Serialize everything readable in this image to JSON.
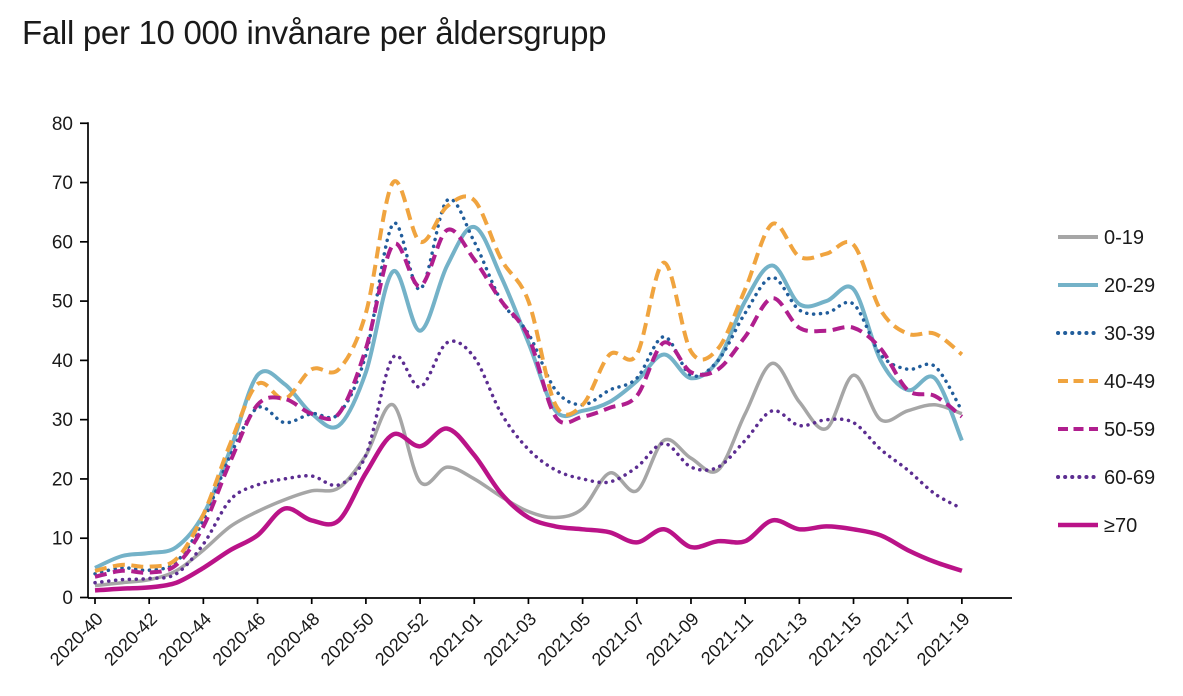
{
  "title": "Fall per 10 000 invånare per åldersgrupp",
  "chart_data": {
    "type": "line",
    "title": "Fall per 10 000 invånare per åldersgrupp",
    "xlabel": "",
    "ylabel": "",
    "ylim": [
      0,
      80
    ],
    "y_ticks": [
      0,
      10,
      20,
      30,
      40,
      50,
      60,
      70,
      80
    ],
    "grid": false,
    "legend_position": "right",
    "x_tick_every": 2,
    "x_weeks": [
      "2020-40",
      "2020-41",
      "2020-42",
      "2020-43",
      "2020-44",
      "2020-45",
      "2020-46",
      "2020-47",
      "2020-48",
      "2020-49",
      "2020-50",
      "2020-51",
      "2020-52",
      "2020-53",
      "2021-01",
      "2021-02",
      "2021-03",
      "2021-04",
      "2021-05",
      "2021-06",
      "2021-07",
      "2021-08",
      "2021-09",
      "2021-10",
      "2021-11",
      "2021-12",
      "2021-13",
      "2021-14",
      "2021-15",
      "2021-16",
      "2021-17",
      "2021-18",
      "2021-19"
    ],
    "series": [
      {
        "name": "0-19",
        "color": "#a6a6a6",
        "style": "solid",
        "width": 3.5,
        "values": [
          2,
          2.5,
          3,
          4.5,
          8,
          12,
          14.5,
          16.5,
          18,
          18.5,
          24,
          32.5,
          19.5,
          22,
          20,
          17,
          14.5,
          13.5,
          15,
          21,
          18,
          26.5,
          23.5,
          21.5,
          31,
          39.5,
          33,
          28.5,
          37.5,
          30,
          31.5,
          32.5,
          31
        ]
      },
      {
        "name": "20-29",
        "color": "#74b2c8",
        "style": "solid",
        "width": 4,
        "values": [
          5,
          7,
          7.5,
          8.5,
          14,
          25,
          37.5,
          36,
          31,
          29,
          38,
          55,
          45,
          56,
          62.5,
          54,
          43,
          31.5,
          31.5,
          33,
          36.5,
          41,
          37,
          40,
          50,
          56,
          49.5,
          50,
          52,
          40,
          35,
          37,
          26.5
        ]
      },
      {
        "name": "30-39",
        "color": "#215d9b",
        "style": "dotted",
        "width": 3.5,
        "values": [
          4,
          5,
          4.6,
          6,
          13,
          24,
          32,
          29.5,
          31,
          31,
          41,
          63,
          52,
          67,
          60,
          50,
          44.5,
          35,
          32.5,
          35,
          37,
          44,
          37.5,
          40,
          48,
          54,
          48.5,
          48,
          49.5,
          41,
          38.5,
          39,
          31.5
        ]
      },
      {
        "name": "40-49",
        "color": "#f0a43f",
        "style": "dashed",
        "width": 4,
        "values": [
          4.5,
          5.5,
          5.2,
          6.5,
          14,
          26,
          36,
          33.5,
          38.5,
          38.5,
          48,
          70,
          60,
          66,
          67,
          57,
          50,
          32.5,
          32.5,
          41,
          41,
          56.5,
          41.5,
          42,
          52,
          63,
          57.5,
          58,
          59.5,
          48.5,
          44.5,
          44.5,
          41
        ]
      },
      {
        "name": "50-59",
        "color": "#b01e8e",
        "style": "dashed",
        "width": 4,
        "values": [
          3.5,
          4.5,
          4.2,
          5.5,
          12,
          23,
          32.5,
          33.5,
          31,
          31,
          42,
          59.5,
          52.5,
          62,
          57,
          50,
          44,
          30.5,
          30.5,
          32,
          34,
          43,
          38,
          38.5,
          44,
          50.5,
          45.5,
          45,
          45.5,
          42,
          35,
          34,
          30.5
        ]
      },
      {
        "name": "60-69",
        "color": "#5c2d91",
        "style": "dotted",
        "width": 3.5,
        "values": [
          2.5,
          3,
          3.2,
          4,
          9,
          16.5,
          19,
          20,
          20.5,
          19,
          24,
          40.5,
          35.5,
          43,
          40.5,
          31,
          25,
          21.5,
          20,
          19.5,
          22,
          26,
          22,
          22,
          26.5,
          31.5,
          29,
          30,
          29.5,
          25,
          21.5,
          17.5,
          15
        ]
      },
      {
        "name": "≥70",
        "color": "#ba1388",
        "style": "solid",
        "width": 4.5,
        "values": [
          1.2,
          1.5,
          1.7,
          2.5,
          5,
          8,
          10.5,
          15,
          13,
          13,
          21,
          27.5,
          25.5,
          28.5,
          24,
          17.5,
          13.5,
          12,
          11.5,
          11,
          9.3,
          11.5,
          8.5,
          9.5,
          9.5,
          13,
          11.5,
          12,
          11.5,
          10.5,
          8,
          6,
          4.5
        ]
      }
    ]
  },
  "axis": {
    "color": "#000000",
    "text_color": "#1a1a1a"
  }
}
